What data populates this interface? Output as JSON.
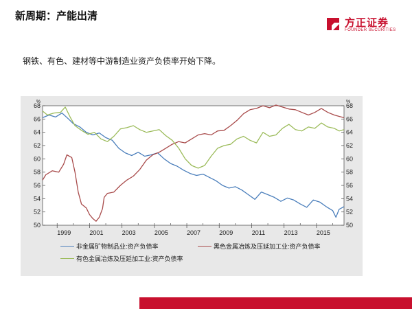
{
  "header": {
    "title": "新周期：产能出清",
    "logo_cn": "方正证券",
    "logo_en": "FOUNDER SECURITIES"
  },
  "subtitle": "钢铁、有色、建材等中游制造业资产负债率开始下降。",
  "colors": {
    "brand_red": "#c8102e",
    "series_blue": "#4a7ebb",
    "series_red": "#a84a4a",
    "series_green": "#9bbb59"
  },
  "chart_data": {
    "type": "line",
    "unit_left": "%",
    "unit_right": "%",
    "x_tick_labels": [
      "1999",
      "2001",
      "2003",
      "2005",
      "2007",
      "2009",
      "2011",
      "2013",
      "2015"
    ],
    "x_ticks": [
      1999,
      2001,
      2003,
      2005,
      2007,
      2009,
      2011,
      2013,
      2015
    ],
    "xlim": [
      1998.1,
      2016.7
    ],
    "ylim": [
      50,
      68
    ],
    "y_ticks": [
      50,
      52,
      54,
      56,
      58,
      60,
      62,
      64,
      66,
      68
    ],
    "y_tick_labels": [
      "50",
      "52",
      "54",
      "56",
      "58",
      "60",
      "62",
      "64",
      "66",
      "68"
    ],
    "grid": false,
    "legend_position": "bottom",
    "series": [
      {
        "name": "非金属矿物制品业:资产负债率",
        "color": "#4a7ebb",
        "points": [
          [
            1998.1,
            66.2
          ],
          [
            1998.5,
            66.6
          ],
          [
            1998.9,
            66.3
          ],
          [
            1999.3,
            66.9
          ],
          [
            1999.7,
            66.0
          ],
          [
            2000.0,
            65.3
          ],
          [
            2000.4,
            64.8
          ],
          [
            2000.8,
            64.0
          ],
          [
            2001.2,
            63.6
          ],
          [
            2001.6,
            63.9
          ],
          [
            2002.0,
            63.2
          ],
          [
            2002.4,
            62.8
          ],
          [
            2002.8,
            61.6
          ],
          [
            2003.2,
            60.9
          ],
          [
            2003.6,
            60.5
          ],
          [
            2004.0,
            61.0
          ],
          [
            2004.4,
            60.4
          ],
          [
            2004.8,
            60.6
          ],
          [
            2005.2,
            60.9
          ],
          [
            2005.6,
            60.0
          ],
          [
            2006.0,
            59.3
          ],
          [
            2006.4,
            58.9
          ],
          [
            2006.8,
            58.3
          ],
          [
            2007.2,
            57.8
          ],
          [
            2007.6,
            57.5
          ],
          [
            2008.0,
            57.7
          ],
          [
            2008.4,
            57.2
          ],
          [
            2008.8,
            56.7
          ],
          [
            2009.2,
            56.0
          ],
          [
            2009.6,
            55.6
          ],
          [
            2010.0,
            55.8
          ],
          [
            2010.4,
            55.3
          ],
          [
            2010.8,
            54.6
          ],
          [
            2011.2,
            53.9
          ],
          [
            2011.6,
            55.0
          ],
          [
            2012.0,
            54.6
          ],
          [
            2012.4,
            54.2
          ],
          [
            2012.8,
            53.6
          ],
          [
            2013.2,
            54.1
          ],
          [
            2013.6,
            53.8
          ],
          [
            2014.0,
            53.2
          ],
          [
            2014.4,
            52.7
          ],
          [
            2014.8,
            53.8
          ],
          [
            2015.2,
            53.5
          ],
          [
            2015.6,
            52.8
          ],
          [
            2016.0,
            52.2
          ],
          [
            2016.2,
            51.2
          ],
          [
            2016.4,
            52.4
          ],
          [
            2016.7,
            52.8
          ]
        ]
      },
      {
        "name": "黑色金属冶炼及压延加工业:资产负债率",
        "color": "#a84a4a",
        "points": [
          [
            1998.1,
            56.8
          ],
          [
            1998.3,
            57.6
          ],
          [
            1998.7,
            58.2
          ],
          [
            1999.1,
            58.0
          ],
          [
            1999.4,
            59.2
          ],
          [
            1999.6,
            60.6
          ],
          [
            1999.9,
            60.2
          ],
          [
            2000.1,
            58.0
          ],
          [
            2000.3,
            55.0
          ],
          [
            2000.5,
            53.2
          ],
          [
            2000.8,
            52.6
          ],
          [
            2001.0,
            51.6
          ],
          [
            2001.2,
            51.0
          ],
          [
            2001.4,
            50.6
          ],
          [
            2001.6,
            51.2
          ],
          [
            2001.8,
            52.5
          ],
          [
            2001.9,
            54.2
          ],
          [
            2002.1,
            54.8
          ],
          [
            2002.5,
            55.0
          ],
          [
            2002.9,
            56.0
          ],
          [
            2003.3,
            56.8
          ],
          [
            2003.7,
            57.4
          ],
          [
            2004.1,
            58.4
          ],
          [
            2004.5,
            59.8
          ],
          [
            2004.9,
            60.6
          ],
          [
            2005.3,
            61.0
          ],
          [
            2005.7,
            61.6
          ],
          [
            2006.1,
            62.2
          ],
          [
            2006.5,
            62.6
          ],
          [
            2006.9,
            62.4
          ],
          [
            2007.3,
            63.0
          ],
          [
            2007.7,
            63.6
          ],
          [
            2008.1,
            63.8
          ],
          [
            2008.5,
            63.6
          ],
          [
            2008.9,
            64.2
          ],
          [
            2009.3,
            64.3
          ],
          [
            2009.7,
            65.0
          ],
          [
            2010.1,
            65.8
          ],
          [
            2010.5,
            66.8
          ],
          [
            2010.9,
            67.4
          ],
          [
            2011.3,
            67.6
          ],
          [
            2011.7,
            68.0
          ],
          [
            2012.1,
            67.7
          ],
          [
            2012.5,
            68.1
          ],
          [
            2012.9,
            67.8
          ],
          [
            2013.3,
            67.5
          ],
          [
            2013.7,
            67.4
          ],
          [
            2014.1,
            67.0
          ],
          [
            2014.5,
            66.6
          ],
          [
            2014.9,
            67.0
          ],
          [
            2015.3,
            67.6
          ],
          [
            2015.7,
            67.0
          ],
          [
            2016.1,
            66.6
          ],
          [
            2016.4,
            66.4
          ],
          [
            2016.7,
            66.2
          ]
        ]
      },
      {
        "name": "有色金属冶炼及压延加工业:资产负债率",
        "color": "#9bbb59",
        "points": [
          [
            1998.1,
            67.2
          ],
          [
            1998.4,
            66.6
          ],
          [
            1998.8,
            66.9
          ],
          [
            1999.2,
            67.0
          ],
          [
            1999.5,
            67.8
          ],
          [
            1999.8,
            66.3
          ],
          [
            2000.1,
            65.0
          ],
          [
            2000.5,
            64.3
          ],
          [
            2000.9,
            63.7
          ],
          [
            2001.3,
            64.0
          ],
          [
            2001.7,
            63.0
          ],
          [
            2002.1,
            62.6
          ],
          [
            2002.5,
            63.4
          ],
          [
            2002.9,
            64.5
          ],
          [
            2003.3,
            64.7
          ],
          [
            2003.7,
            65.0
          ],
          [
            2004.1,
            64.4
          ],
          [
            2004.5,
            64.0
          ],
          [
            2004.9,
            64.2
          ],
          [
            2005.3,
            64.4
          ],
          [
            2005.7,
            63.5
          ],
          [
            2006.1,
            62.8
          ],
          [
            2006.5,
            61.6
          ],
          [
            2006.9,
            60.0
          ],
          [
            2007.3,
            59.0
          ],
          [
            2007.7,
            58.6
          ],
          [
            2008.1,
            59.0
          ],
          [
            2008.5,
            60.4
          ],
          [
            2008.9,
            61.6
          ],
          [
            2009.3,
            62.0
          ],
          [
            2009.7,
            62.2
          ],
          [
            2010.1,
            63.0
          ],
          [
            2010.5,
            63.4
          ],
          [
            2010.9,
            62.8
          ],
          [
            2011.3,
            62.4
          ],
          [
            2011.7,
            64.0
          ],
          [
            2012.1,
            63.4
          ],
          [
            2012.5,
            63.6
          ],
          [
            2012.9,
            64.6
          ],
          [
            2013.3,
            65.2
          ],
          [
            2013.7,
            64.4
          ],
          [
            2014.1,
            64.2
          ],
          [
            2014.5,
            64.8
          ],
          [
            2014.9,
            64.6
          ],
          [
            2015.3,
            65.4
          ],
          [
            2015.7,
            64.8
          ],
          [
            2016.1,
            64.6
          ],
          [
            2016.4,
            64.2
          ],
          [
            2016.7,
            64.4
          ]
        ]
      }
    ]
  }
}
